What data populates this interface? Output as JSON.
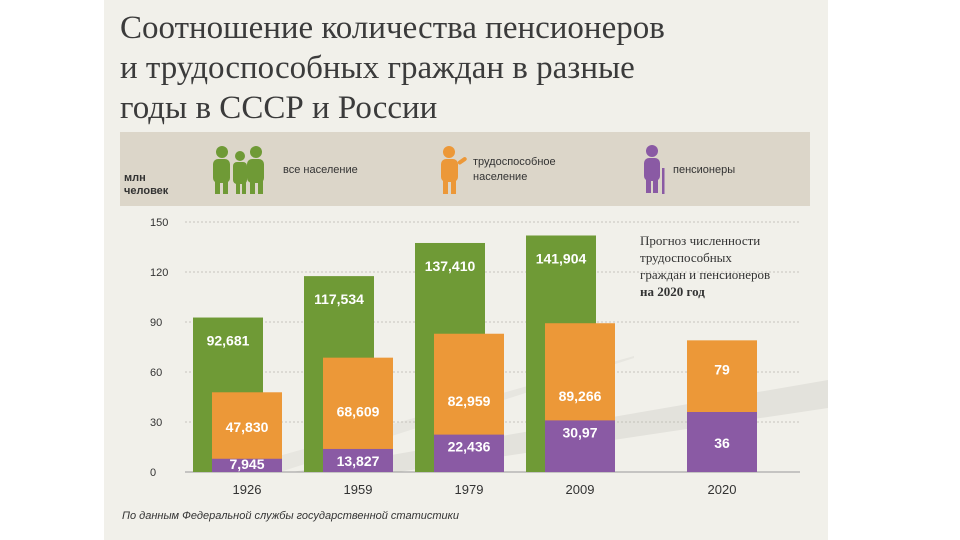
{
  "title_lines": [
    "Соотношение количества пенсионеров",
    "и трудоспособных граждан в разные",
    "годы в СССР и России"
  ],
  "legend": {
    "unit_lines": [
      "млн",
      "человек"
    ],
    "items": [
      {
        "label_lines": [
          "все население"
        ],
        "color": "#6f9a36",
        "icon": "family-icon"
      },
      {
        "label_lines": [
          "трудоспособное",
          "население"
        ],
        "color": "#ec9838",
        "icon": "worker-icon"
      },
      {
        "label_lines": [
          "пенсионеры"
        ],
        "color": "#8a5aa4",
        "icon": "elderly-person-icon"
      }
    ]
  },
  "forecast_note_lines": [
    "Прогноз численности",
    "трудоспособных",
    "граждан и пенсионеров",
    "на 2020 год"
  ],
  "source": "По данным Федеральной службы государственной статистики",
  "chart_data": {
    "type": "bar",
    "categories": [
      "1926",
      "1959",
      "1979",
      "2009",
      "2020"
    ],
    "ylim": [
      0,
      150
    ],
    "yticks": [
      "0",
      "30",
      "60",
      "90",
      "120",
      "150"
    ],
    "series": [
      {
        "name": "все население",
        "values": [
          92.681,
          117.534,
          137.41,
          141.904,
          null
        ],
        "labels": [
          "92,681",
          "117,534",
          "137,410",
          "141,904",
          ""
        ],
        "color": "#6f9a36"
      },
      {
        "name": "трудоспособное население",
        "values": [
          47.83,
          68.609,
          82.959,
          89.266,
          79
        ],
        "labels": [
          "47,830",
          "68,609",
          "82,959",
          "89,266",
          "79"
        ],
        "color": "#ec9838"
      },
      {
        "name": "пенсионеры",
        "values": [
          7.945,
          13.827,
          22.436,
          30.97,
          36
        ],
        "labels": [
          "7,945",
          "13,827",
          "22,436",
          "30,97",
          "36"
        ],
        "color": "#8a5aa4"
      }
    ],
    "grid": true
  }
}
